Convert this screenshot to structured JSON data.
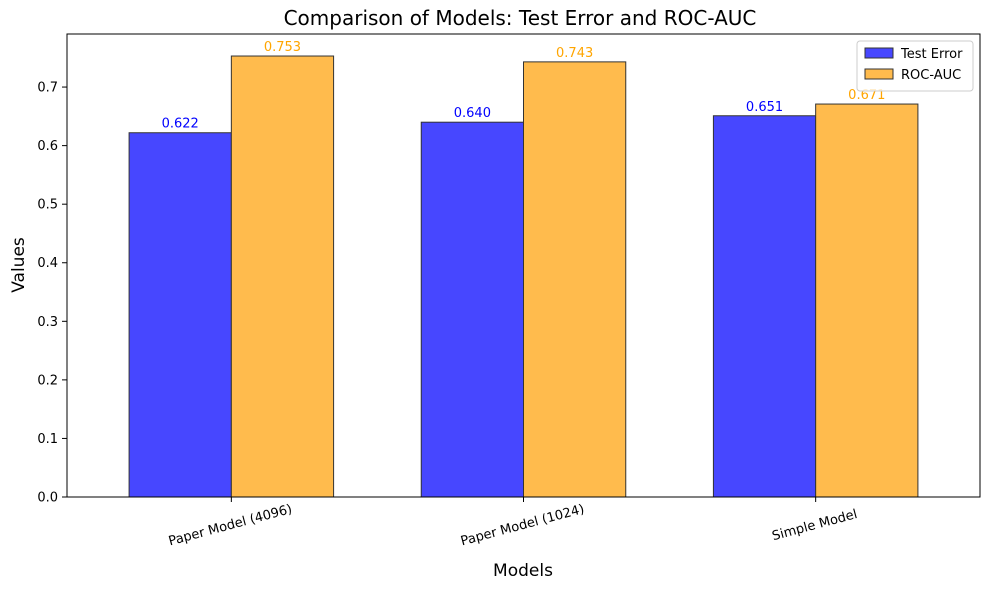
{
  "chart_data": {
    "type": "bar",
    "title": "Comparison of Models: Test Error and ROC-AUC",
    "xlabel": "Models",
    "ylabel": "Values",
    "categories": [
      "Paper Model (4096)",
      "Paper Model (1024)",
      "Simple Model"
    ],
    "series": [
      {
        "name": "Test Error",
        "values": [
          0.622,
          0.64,
          0.651
        ],
        "labels": [
          "0.622",
          "0.640",
          "0.651"
        ],
        "color": "#4747ff",
        "label_color": "#0000ff"
      },
      {
        "name": "ROC-AUC",
        "values": [
          0.753,
          0.743,
          0.671
        ],
        "labels": [
          "0.753",
          "0.743",
          "0.671"
        ],
        "color": "#ffbb4d",
        "label_color": "#ffa500"
      }
    ],
    "ylim": [
      0,
      0.7906
    ],
    "yticks": [
      0.0,
      0.1,
      0.2,
      0.3,
      0.4,
      0.5,
      0.6,
      0.7
    ],
    "ytick_labels": [
      "0.0",
      "0.1",
      "0.2",
      "0.3",
      "0.4",
      "0.5",
      "0.6",
      "0.7"
    ],
    "grid": false,
    "legend_position": "top-right",
    "bar_edge_color": "#333333",
    "xtick_rotation_deg": -15
  }
}
